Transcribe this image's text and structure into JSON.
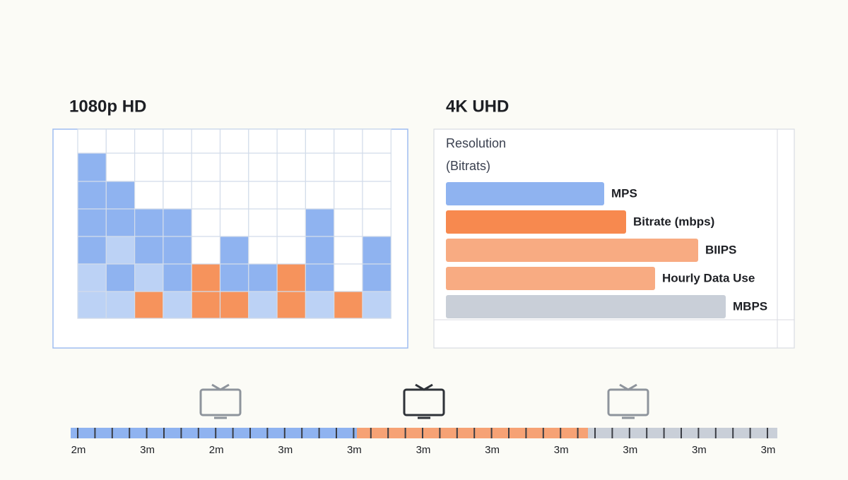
{
  "left_panel": {
    "title": "1080p HD"
  },
  "right_panel": {
    "title": "4K UHD",
    "heading": "Resolution",
    "subheading": "(Bitrats)",
    "bar_labels": [
      "MPS",
      "Bitrate (mbps)",
      "BIIPS",
      "Hourly Data Use",
      "MBPS"
    ]
  },
  "timeline": {
    "labels": [
      "2m",
      "3m",
      "2m",
      "3m",
      "3m",
      "3m",
      "3m",
      "3m",
      "3m",
      "3m",
      "3m"
    ]
  }
}
